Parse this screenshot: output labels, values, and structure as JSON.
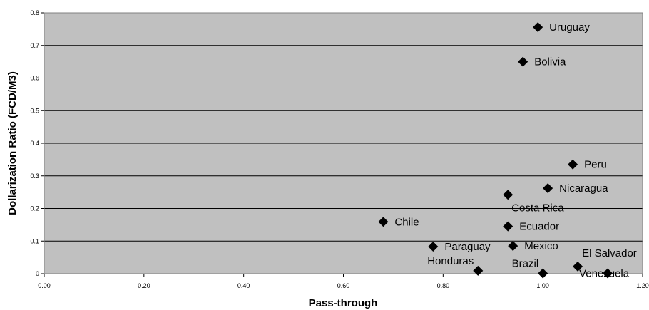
{
  "chart_data": {
    "type": "scatter",
    "title": "",
    "xlabel": "Pass-through",
    "ylabel": "Dollarization Ratio (FCD/M3)",
    "xlim": [
      0,
      1.2
    ],
    "ylim": [
      0,
      0.8
    ],
    "xticks": [
      "0.00",
      "0.20",
      "0.40",
      "0.60",
      "0.80",
      "1.00",
      "1.20"
    ],
    "yticks": [
      "0",
      "0.1",
      "0.2",
      "0.3",
      "0.4",
      "0.5",
      "0.6",
      "0.7",
      "0.8"
    ],
    "grid": "horizontal",
    "legend": "none",
    "colors": {
      "plot_background": "#c0c0c0",
      "marker": "#000000",
      "gridline": "#000000"
    },
    "points": [
      {
        "label": "Uruguay",
        "x": 0.99,
        "y": 0.756,
        "label_pos": "right"
      },
      {
        "label": "Bolivia",
        "x": 0.96,
        "y": 0.65,
        "label_pos": "right"
      },
      {
        "label": "Peru",
        "x": 1.06,
        "y": 0.335,
        "label_pos": "right"
      },
      {
        "label": "Nicaragua",
        "x": 1.01,
        "y": 0.262,
        "label_pos": "right"
      },
      {
        "label": "Costa Rica",
        "x": 0.93,
        "y": 0.242,
        "label_pos": "below-right"
      },
      {
        "label": "Chile",
        "x": 0.68,
        "y": 0.159,
        "label_pos": "right"
      },
      {
        "label": "Ecuador",
        "x": 0.93,
        "y": 0.145,
        "label_pos": "right"
      },
      {
        "label": "Paraguay",
        "x": 0.78,
        "y": 0.083,
        "label_pos": "right"
      },
      {
        "label": "Mexico",
        "x": 0.94,
        "y": 0.085,
        "label_pos": "right"
      },
      {
        "label": "El Salvador",
        "x": 1.07,
        "y": 0.022,
        "label_pos": "above-right"
      },
      {
        "label": "Honduras",
        "x": 0.87,
        "y": 0.009,
        "label_pos": "above-left"
      },
      {
        "label": "Brazil",
        "x": 1.0,
        "y": 0.001,
        "label_pos": "above-left"
      },
      {
        "label": "Venezuela",
        "x": 1.13,
        "y": 0.001,
        "label_pos": "overlap"
      }
    ]
  }
}
